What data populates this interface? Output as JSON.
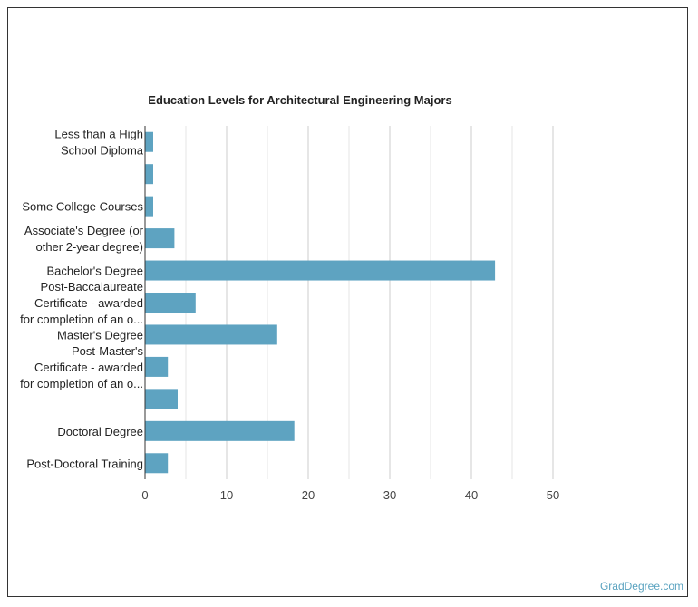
{
  "chart_data": {
    "type": "bar",
    "orientation": "horizontal",
    "title": "Education Levels for Architectural Engineering Majors",
    "categories": [
      [
        "Less than a High",
        "School Diploma"
      ],
      [],
      [
        "Some College Courses"
      ],
      [
        "Associate's Degree (or",
        "other 2-year degree)"
      ],
      [
        "Bachelor's Degree"
      ],
      [
        "Post-Baccalaureate",
        "Certificate - awarded",
        "for completion of an o..."
      ],
      [
        "Master's Degree"
      ],
      [
        "Post-Master's",
        "Certificate - awarded",
        "for completion of an o..."
      ],
      [],
      [
        "Doctoral Degree"
      ],
      [
        "Post-Doctoral Training"
      ]
    ],
    "values": [
      1.0,
      1.0,
      1.0,
      3.6,
      42.9,
      6.2,
      16.2,
      2.8,
      4.0,
      18.3,
      2.8
    ],
    "xlim": [
      0,
      50
    ],
    "xticks": [
      0,
      10,
      20,
      30,
      40,
      50
    ],
    "grid": true,
    "bar_color": "#5ea3c1",
    "xlabel": "",
    "ylabel": ""
  },
  "footer": {
    "brand": "GradDegree.com"
  }
}
